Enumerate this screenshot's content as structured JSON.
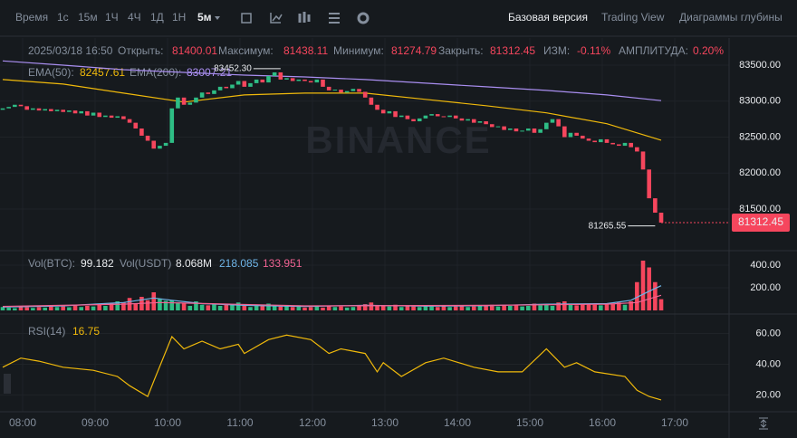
{
  "toolbar": {
    "intervals": [
      "Время",
      "1с",
      "15м",
      "1Ч",
      "4Ч",
      "1Д",
      "1Н"
    ],
    "active": "5м",
    "views": [
      "Базовая версия",
      "Trading View",
      "Диаграммы глубины"
    ]
  },
  "watermark": "BINANCE",
  "time_labels": [
    "08:00",
    "09:00",
    "10:00",
    "11:00",
    "12:00",
    "13:00",
    "14:00",
    "15:00",
    "16:00",
    "17:00"
  ],
  "chart_data": [
    {
      "type": "candlestick",
      "info": {
        "time": "2025/03/18 16:50",
        "open_label": "Открыть:",
        "open": 81400.01,
        "high_label": "Максимум:",
        "high": 81438.11,
        "low_label": "Минимум:",
        "low": 81274.79,
        "close_label": "Закрыть:",
        "change_label": "ИЗМ:",
        "change": "-0.11%",
        "amplitude_label": "АМПЛИТУДА:",
        "amplitude": "0.20%"
      },
      "open0": 82880,
      "closes": [
        82900,
        82920,
        82950,
        82930,
        82880,
        82900,
        82870,
        82890,
        82860,
        82880,
        82850,
        82870,
        82830,
        82860,
        82800,
        82840,
        82780,
        82800,
        82770,
        82790,
        82750,
        82700,
        82620,
        82520,
        82450,
        82340,
        82380,
        82420,
        82900,
        83050,
        82950,
        82980,
        83050,
        83120,
        83100,
        83150,
        83200,
        83180,
        83230,
        83280,
        83200,
        83250,
        83300,
        83260,
        83350,
        83400,
        83300,
        83320,
        83280,
        83300,
        83280,
        83260,
        83300,
        83200,
        83150,
        83160,
        83120,
        83140,
        83170,
        83130,
        83050,
        82950,
        82880,
        82830,
        82860,
        82780,
        82800,
        82750,
        82720,
        82760,
        82800,
        82820,
        82790,
        82780,
        82800,
        82760,
        82730,
        82750,
        82700,
        82720,
        82680,
        82640,
        82650,
        82600,
        82620,
        82580,
        82590,
        82620,
        82560,
        82610,
        82700,
        82750,
        82650,
        82500,
        82560,
        82520,
        82480,
        82450,
        82430,
        82470,
        82420,
        82400,
        82380,
        82420,
        82360,
        82300,
        82050,
        81650,
        81450,
        81312.45
      ],
      "up_color": "#2ebd85",
      "down_color": "#f6465d",
      "ylim": [
        80947,
        83840
      ],
      "yticks": [
        {
          "value": 83500,
          "label": "83500.00"
        },
        {
          "value": 83000,
          "label": "83000.00"
        },
        {
          "value": 82500,
          "label": "82500.00"
        },
        {
          "value": 82000,
          "label": "82000.00"
        },
        {
          "value": 81500,
          "label": "81500.00"
        }
      ],
      "series": [
        {
          "name": "EMA(50):",
          "color": "#f0b90b",
          "x": [
            0,
            10,
            20,
            30,
            40,
            50,
            60,
            70,
            80,
            90,
            100,
            109
          ],
          "values": [
            83300,
            83237,
            83112,
            82987,
            83087,
            83112,
            83112,
            83025,
            82937,
            82837,
            82687,
            82457.61
          ]
        },
        {
          "name": "EMA(200):",
          "color": "#a98ef0",
          "x": [
            0,
            10,
            20,
            30,
            40,
            50,
            60,
            70,
            80,
            90,
            100,
            109
          ],
          "values": [
            83560,
            83500,
            83437,
            83400,
            83362,
            83337,
            83300,
            83250,
            83200,
            83150,
            83087,
            83007.21
          ]
        }
      ],
      "annotations": [
        {
          "x": 46,
          "value": 83452.3,
          "label": "83452.30"
        },
        {
          "x": 108,
          "value": 81265.55
        }
      ]
    },
    {
      "type": "bar",
      "name": "Vol(BTC):",
      "usdt_name": "Vol(USDT)",
      "usdt": "8.068M",
      "values": [
        30,
        25,
        20,
        35,
        28,
        22,
        30,
        25,
        40,
        30,
        35,
        28,
        45,
        30,
        40,
        35,
        50,
        40,
        60,
        80,
        70,
        110,
        60,
        120,
        90,
        160,
        100,
        85,
        90,
        70,
        60,
        40,
        80,
        50,
        45,
        55,
        40,
        60,
        50,
        70,
        45,
        30,
        50,
        40,
        60,
        45,
        35,
        40,
        30,
        45,
        25,
        30,
        35,
        25,
        40,
        30,
        35,
        25,
        30,
        40,
        55,
        70,
        40,
        45,
        35,
        50,
        30,
        40,
        35,
        30,
        40,
        35,
        30,
        45,
        30,
        35,
        40,
        30,
        35,
        45,
        40,
        50,
        35,
        45,
        40,
        50,
        35,
        40,
        60,
        45,
        55,
        40,
        70,
        80,
        50,
        45,
        60,
        55,
        50,
        45,
        60,
        55,
        70,
        50,
        80,
        250,
        440,
        380,
        250,
        99.182
      ],
      "ylim": [
        0,
        480
      ],
      "yticks": [
        {
          "value": 400,
          "label": "400.00"
        },
        {
          "value": 200,
          "label": "200.00"
        }
      ],
      "series": [
        {
          "color": "#6fb5e8",
          "x": [
            0,
            10,
            20,
            25,
            28,
            33,
            40,
            50,
            60,
            70,
            80,
            90,
            100,
            104,
            107,
            109
          ],
          "values": [
            30,
            40,
            70,
            110,
            90,
            60,
            45,
            35,
            45,
            38,
            42,
            55,
            60,
            90,
            170,
            218.085
          ]
        },
        {
          "color": "#f06292",
          "x": [
            0,
            20,
            26,
            30,
            50,
            80,
            100,
            105,
            109
          ],
          "values": [
            35,
            55,
            70,
            65,
            40,
            45,
            55,
            70,
            133.951
          ]
        }
      ]
    },
    {
      "type": "line",
      "name": "RSI(14)",
      "color": "#f0b90b",
      "x": [
        0,
        3,
        6,
        10,
        15,
        19,
        21,
        24,
        25,
        28,
        30,
        33,
        36,
        39,
        40,
        44,
        47,
        51,
        54,
        56,
        60,
        62,
        63,
        66,
        70,
        73,
        78,
        82,
        86,
        90,
        93,
        95,
        98,
        103,
        105,
        107,
        109
      ],
      "values": [
        38,
        44,
        42,
        38,
        36,
        32,
        26,
        19,
        29,
        58,
        50,
        55,
        50,
        53,
        47,
        56,
        59,
        56,
        47,
        50,
        47,
        35,
        41,
        32,
        41,
        44,
        38,
        35,
        35,
        50,
        38,
        41,
        35,
        32,
        23,
        19,
        16.75
      ],
      "ylim": [
        9,
        68
      ],
      "yticks": [
        {
          "value": 60,
          "label": "60.00"
        },
        {
          "value": 40,
          "label": "40.00"
        },
        {
          "value": 20,
          "label": "20.00"
        }
      ]
    }
  ]
}
